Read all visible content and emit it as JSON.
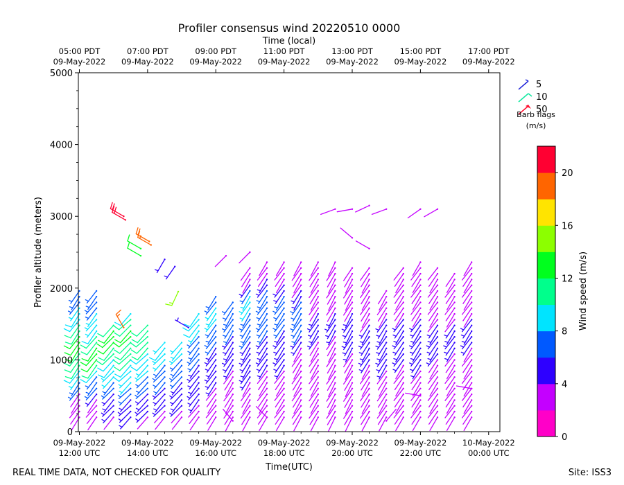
{
  "chart_data": {
    "type": "wind-barb",
    "title": "Profiler consensus wind 20220510 0000",
    "top_axis_label": "Time (local)",
    "top_ticks": [
      {
        "t": 12.0,
        "l1": "05:00 PDT",
        "l2": "09-May-2022"
      },
      {
        "t": 14.0,
        "l1": "07:00 PDT",
        "l2": "09-May-2022"
      },
      {
        "t": 16.0,
        "l1": "09:00 PDT",
        "l2": "09-May-2022"
      },
      {
        "t": 18.0,
        "l1": "11:00 PDT",
        "l2": "09-May-2022"
      },
      {
        "t": 20.0,
        "l1": "13:00 PDT",
        "l2": "09-May-2022"
      },
      {
        "t": 22.0,
        "l1": "15:00 PDT",
        "l2": "09-May-2022"
      },
      {
        "t": 24.0,
        "l1": "17:00 PDT",
        "l2": "09-May-2022"
      }
    ],
    "bottom_ticks": [
      {
        "t": 12.0,
        "l1": "09-May-2022",
        "l2": "12:00 UTC"
      },
      {
        "t": 14.0,
        "l1": "09-May-2022",
        "l2": "14:00 UTC"
      },
      {
        "t": 16.0,
        "l1": "09-May-2022",
        "l2": "16:00 UTC"
      },
      {
        "t": 18.0,
        "l1": "09-May-2022",
        "l2": "18:00 UTC"
      },
      {
        "t": 20.0,
        "l1": "09-May-2022",
        "l2": "20:00 UTC"
      },
      {
        "t": 22.0,
        "l1": "09-May-2022",
        "l2": "22:00 UTC"
      },
      {
        "t": 24.0,
        "l1": "10-May-2022",
        "l2": "00:00 UTC"
      }
    ],
    "xlabel": "Time(UTC)",
    "ylabel": "Profiler altitude (meters)",
    "xlim": [
      11.97,
      24.33
    ],
    "ylim": [
      0,
      5000
    ],
    "y_ticks": [
      0,
      1000,
      2000,
      3000,
      4000,
      5000
    ],
    "y_tick_labels": [
      "0",
      "1000",
      "2000",
      "3000",
      "4000",
      "5000"
    ],
    "legend": {
      "title_line1": "Barb flags",
      "title_line2": "(m/s)",
      "items": [
        {
          "label": "5",
          "color": "#1e22d8"
        },
        {
          "label": "10",
          "color": "#10e8a0"
        },
        {
          "label": "50",
          "color": "#ff1030"
        }
      ]
    },
    "colorbar": {
      "label": "Wind speed (m/s)",
      "min": 0,
      "max": 22,
      "ticks": [
        0,
        4,
        8,
        12,
        16,
        20
      ],
      "tick_labels": [
        "0",
        "4",
        "8",
        "12",
        "16",
        "20"
      ],
      "colors": [
        "#ff00c8",
        "#c400ff",
        "#2e00ff",
        "#0059ff",
        "#00e4ff",
        "#00ff8c",
        "#00ff1e",
        "#8cff00",
        "#ffe400",
        "#ff6500",
        "#ff0032"
      ]
    },
    "profiles": [
      {
        "t": 12.0,
        "top": 2000,
        "dir": 215,
        "spd": [
          2,
          2,
          2,
          3,
          3,
          6,
          7,
          8,
          9,
          10,
          11,
          11,
          12,
          12,
          12,
          11,
          10,
          9,
          9,
          8,
          7,
          6,
          6,
          6
        ]
      },
      {
        "t": 12.5,
        "top": 2000,
        "dir": 218,
        "spd": [
          2,
          2,
          2,
          3,
          5,
          6,
          6,
          7,
          9,
          11,
          12,
          12,
          12,
          11,
          10,
          9,
          8,
          8,
          8,
          7,
          7,
          7,
          7,
          7
        ]
      },
      {
        "t": 13.0,
        "top": 1550,
        "dir": 222,
        "spd": [
          3,
          4,
          5,
          5,
          5,
          6,
          7,
          8,
          8,
          9,
          9,
          10,
          11,
          12,
          12,
          12,
          11,
          10,
          9
        ]
      },
      {
        "t": 13.5,
        "top": 1700,
        "dir": 225,
        "spd": [
          4,
          4,
          5,
          5,
          6,
          7,
          8,
          8,
          9,
          9,
          10,
          10,
          11,
          11,
          12,
          12,
          11,
          10,
          9,
          8,
          6
        ]
      },
      {
        "t": 14.0,
        "top": 1550,
        "dir": 225,
        "spd": [
          3,
          4,
          4,
          5,
          5,
          6,
          7,
          7,
          8,
          8,
          9,
          9,
          10,
          11,
          11,
          11,
          10,
          9,
          7
        ]
      },
      {
        "t": 14.5,
        "top": 1300,
        "dir": 222,
        "spd": [
          2,
          3,
          4,
          4,
          5,
          5,
          6,
          6,
          7,
          7,
          8,
          8,
          9,
          8,
          7,
          6
        ]
      },
      {
        "t": 15.0,
        "top": 1300,
        "dir": 222,
        "spd": [
          2,
          3,
          4,
          4,
          5,
          5,
          5,
          6,
          6,
          7,
          7,
          8,
          8,
          8,
          7,
          6
        ]
      },
      {
        "t": 15.5,
        "top": 1700,
        "dir": 218,
        "spd": [
          2,
          2,
          3,
          4,
          4,
          4,
          5,
          5,
          5,
          5,
          6,
          6,
          6,
          7,
          7,
          8,
          9,
          9,
          9,
          8,
          6
        ]
      },
      {
        "t": 16.0,
        "top": 1950,
        "dir": 215,
        "spd": [
          2,
          2,
          2,
          3,
          3,
          3,
          4,
          4,
          4,
          4,
          5,
          5,
          5,
          6,
          6,
          6,
          7,
          8,
          8,
          8,
          7,
          6,
          6
        ]
      },
      {
        "t": 16.5,
        "top": 1850,
        "dir": 212,
        "spd": [
          2,
          2,
          2,
          2,
          2,
          3,
          3,
          3,
          3,
          4,
          4,
          4,
          5,
          5,
          5,
          6,
          6,
          7,
          7,
          7,
          7,
          6
        ]
      },
      {
        "t": 17.0,
        "top": 2350,
        "dir": 212,
        "spd": [
          2,
          2,
          2,
          2,
          3,
          3,
          3,
          4,
          4,
          4,
          4,
          5,
          5,
          5,
          6,
          6,
          6,
          7,
          7,
          8,
          8,
          8,
          6,
          4,
          3,
          2,
          2,
          2
        ]
      },
      {
        "t": 17.5,
        "top": 2400,
        "dir": 214,
        "spd": [
          2,
          2,
          2,
          2,
          2,
          3,
          3,
          3,
          3,
          4,
          4,
          4,
          5,
          5,
          5,
          6,
          6,
          6,
          7,
          7,
          7,
          7,
          6,
          5,
          4,
          3,
          2,
          2,
          2
        ]
      },
      {
        "t": 18.0,
        "top": 2400,
        "dir": 214,
        "spd": [
          2,
          2,
          2,
          2,
          2,
          2,
          3,
          3,
          3,
          4,
          4,
          4,
          5,
          5,
          5,
          5,
          6,
          6,
          7,
          7,
          7,
          6,
          5,
          4,
          3,
          2,
          2,
          2,
          2
        ]
      },
      {
        "t": 18.5,
        "top": 2400,
        "dir": 212,
        "spd": [
          2,
          2,
          2,
          2,
          2,
          2,
          2,
          2,
          2,
          2,
          2,
          3,
          3,
          4,
          5,
          6,
          6,
          6,
          6,
          6,
          6,
          5,
          4,
          3,
          2,
          2,
          2,
          2,
          2
        ]
      },
      {
        "t": 19.0,
        "top": 2400,
        "dir": 212,
        "spd": [
          2,
          2,
          2,
          2,
          2,
          2,
          2,
          2,
          2,
          2,
          2,
          2,
          2,
          3,
          4,
          5,
          5,
          5,
          4,
          3,
          2,
          2,
          2,
          2,
          2,
          2,
          2,
          2,
          2
        ]
      },
      {
        "t": 19.5,
        "top": 2400,
        "dir": 210,
        "spd": [
          2,
          2,
          2,
          2,
          2,
          2,
          2,
          2,
          2,
          2,
          2,
          2,
          2,
          3,
          3,
          4,
          4,
          4,
          4,
          3,
          2,
          2,
          2,
          2,
          2,
          2,
          2,
          2,
          2
        ]
      },
      {
        "t": 20.0,
        "top": 2350,
        "dir": 210,
        "spd": [
          2,
          2,
          2,
          2,
          2,
          2,
          2,
          2,
          2,
          2,
          3,
          3,
          4,
          4,
          4,
          4,
          4,
          4,
          4,
          3,
          3,
          2,
          2,
          2,
          2,
          2,
          2,
          2
        ]
      },
      {
        "t": 20.5,
        "top": 2350,
        "dir": 212,
        "spd": [
          2,
          2,
          2,
          2,
          2,
          2,
          2,
          2,
          3,
          3,
          4,
          4,
          4,
          5,
          5,
          4,
          4,
          3,
          3,
          2,
          2,
          2,
          2,
          2,
          2,
          2,
          2,
          2
        ]
      },
      {
        "t": 21.0,
        "top": 2000,
        "dir": 212,
        "spd": [
          2,
          2,
          2,
          2,
          2,
          2,
          2,
          3,
          3,
          4,
          4,
          5,
          5,
          5,
          5,
          5,
          4,
          4,
          3,
          3,
          2,
          2,
          2,
          2
        ]
      },
      {
        "t": 21.5,
        "top": 2350,
        "dir": 214,
        "spd": [
          2,
          2,
          2,
          2,
          2,
          2,
          2,
          2,
          3,
          3,
          4,
          4,
          5,
          5,
          5,
          4,
          4,
          4,
          3,
          2,
          2,
          2,
          2,
          2,
          2,
          2,
          2,
          2
        ]
      },
      {
        "t": 22.0,
        "top": 2400,
        "dir": 214,
        "spd": [
          2,
          2,
          2,
          2,
          2,
          2,
          2,
          3,
          3,
          4,
          4,
          4,
          4,
          4,
          4,
          4,
          4,
          4,
          3,
          3,
          2,
          2,
          2,
          2,
          2,
          2,
          2,
          2,
          2
        ]
      },
      {
        "t": 22.5,
        "top": 2350,
        "dir": 214,
        "spd": [
          2,
          2,
          2,
          2,
          2,
          2,
          2,
          2,
          2,
          2,
          3,
          4,
          4,
          4,
          4,
          4,
          4,
          3,
          3,
          2,
          2,
          2,
          2,
          2,
          2,
          2,
          2,
          2
        ]
      },
      {
        "t": 23.0,
        "top": 2250,
        "dir": 214,
        "spd": [
          2,
          2,
          2,
          2,
          2,
          2,
          2,
          2,
          2,
          2,
          3,
          3,
          4,
          4,
          4,
          4,
          4,
          3,
          3,
          2,
          2,
          2,
          2,
          2,
          2,
          2,
          2
        ]
      },
      {
        "t": 23.5,
        "top": 2400,
        "dir": 214,
        "spd": [
          2,
          2,
          2,
          2,
          2,
          2,
          2,
          2,
          2,
          2,
          2,
          3,
          3,
          4,
          4,
          4,
          4,
          4,
          3,
          3,
          2,
          2,
          2,
          2,
          2,
          2,
          2,
          2,
          2
        ]
      }
    ],
    "extras": [
      {
        "t": 13.3,
        "alt": 3000,
        "dir": 300,
        "spd": 20
      },
      {
        "t": 13.35,
        "alt": 2950,
        "dir": 300,
        "spd": 21
      },
      {
        "t": 14.05,
        "alt": 2650,
        "dir": 300,
        "spd": 19
      },
      {
        "t": 14.1,
        "alt": 2600,
        "dir": 300,
        "spd": 18
      },
      {
        "t": 13.8,
        "alt": 2550,
        "dir": 300,
        "spd": 13
      },
      {
        "t": 13.8,
        "alt": 2450,
        "dir": 300,
        "spd": 12
      },
      {
        "t": 14.5,
        "alt": 2400,
        "dir": 210,
        "spd": 4
      },
      {
        "t": 14.8,
        "alt": 2300,
        "dir": 215,
        "spd": 4
      },
      {
        "t": 14.9,
        "alt": 1950,
        "dir": 205,
        "spd": 14
      },
      {
        "t": 13.3,
        "alt": 1450,
        "dir": 330,
        "spd": 18
      },
      {
        "t": 15.2,
        "alt": 1450,
        "dir": 300,
        "spd": 4
      },
      {
        "t": 17.0,
        "alt": 2500,
        "dir": 225,
        "spd": 3
      },
      {
        "t": 16.3,
        "alt": 2450,
        "dir": 225,
        "spd": 2
      },
      {
        "t": 19.5,
        "alt": 3100,
        "dir": 250,
        "spd": 2
      },
      {
        "t": 20.0,
        "alt": 3100,
        "dir": 260,
        "spd": 2
      },
      {
        "t": 20.5,
        "alt": 3150,
        "dir": 245,
        "spd": 2
      },
      {
        "t": 21.0,
        "alt": 3100,
        "dir": 250,
        "spd": 2
      },
      {
        "t": 22.0,
        "alt": 3100,
        "dir": 235,
        "spd": 2
      },
      {
        "t": 22.5,
        "alt": 3100,
        "dir": 240,
        "spd": 2
      },
      {
        "t": 20.0,
        "alt": 2700,
        "dir": 310,
        "spd": 2
      },
      {
        "t": 20.5,
        "alt": 2550,
        "dir": 300,
        "spd": 2
      },
      {
        "t": 17.5,
        "alt": 200,
        "dir": 315,
        "spd": 2
      },
      {
        "t": 16.5,
        "alt": 150,
        "dir": 320,
        "spd": 2
      },
      {
        "t": 21.0,
        "alt": 150,
        "dir": 40,
        "spd": 2
      },
      {
        "t": 22.0,
        "alt": 500,
        "dir": 280,
        "spd": 2
      },
      {
        "t": 23.5,
        "alt": 600,
        "dir": 280,
        "spd": 2
      }
    ]
  },
  "footer": {
    "left_note": "REAL TIME DATA, NOT CHECKED FOR QUALITY",
    "site": "Site: ISS3"
  }
}
